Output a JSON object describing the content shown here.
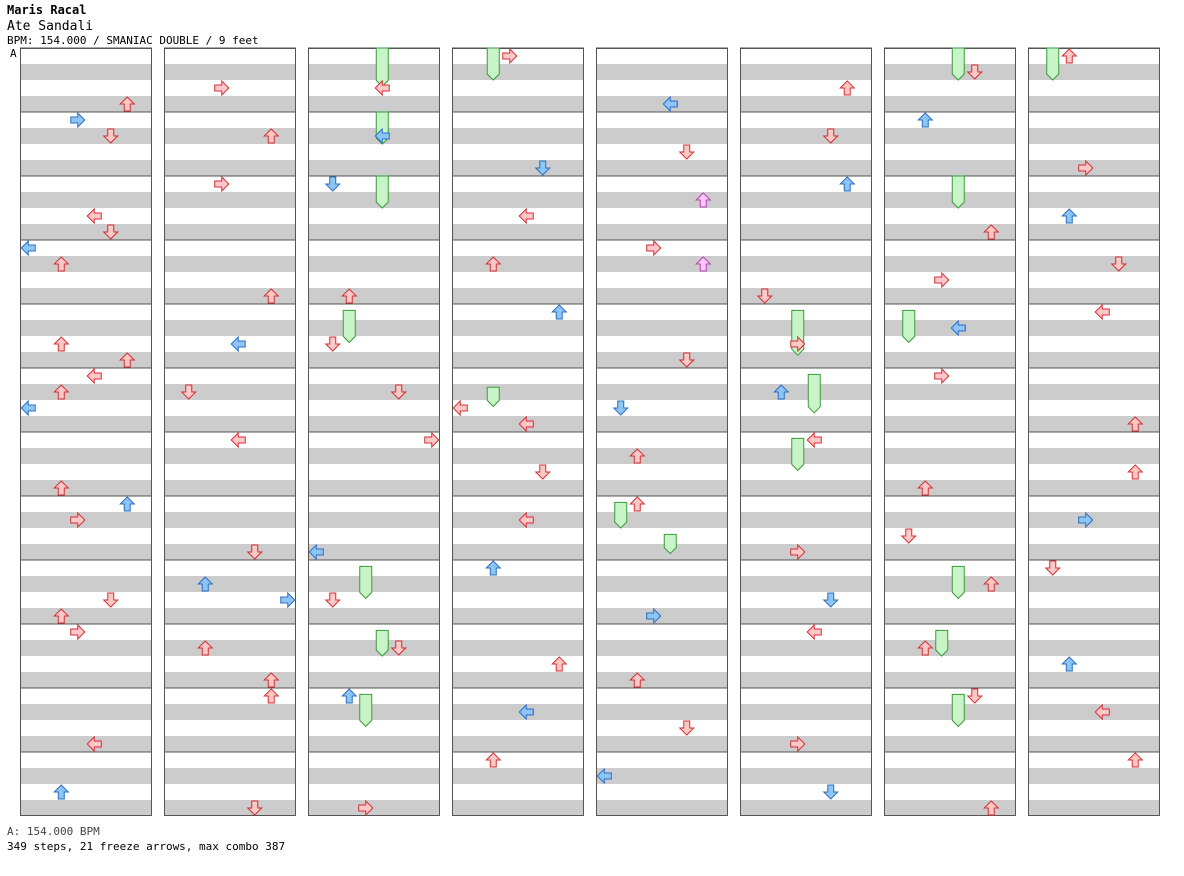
{
  "header": {
    "artist": "Maris Racal",
    "title": "Ate Sandali",
    "meta": "BPM: 154.000 / SMANIAC DOUBLE / 9 feet",
    "bpm_marker": "A"
  },
  "footer": {
    "bpm_line": "A: 154.000 BPM",
    "summary": "349 steps, 21 freeze arrows, max combo 387"
  },
  "colors": {
    "band": "#cccccc",
    "border": "#555555",
    "red_fill": "#ffc8c8",
    "red_stroke": "#d03030",
    "blue_fill": "#8ec5f5",
    "blue_stroke": "#2a6fc0",
    "pink_fill": "#ffc8ff",
    "pink_stroke": "#b040b0",
    "freeze_fill": "#c8f5c8",
    "freeze_stroke": "#3a9a3a"
  },
  "chart_data": {
    "type": "table",
    "columns": 8,
    "measures_per_column": 12,
    "lanes_per_column": 8,
    "notes": [
      [
        0,
        9,
        3,
        "r"
      ],
      [
        0,
        8,
        2,
        "r"
      ],
      [
        0,
        8,
        5,
        "r"
      ],
      [
        0,
        7,
        3,
        "r"
      ],
      [
        0,
        7,
        6,
        "b"
      ],
      [
        0,
        6,
        2,
        "r"
      ],
      [
        0,
        5,
        0,
        "b"
      ],
      [
        0,
        5,
        2,
        "r"
      ],
      [
        0,
        5,
        4,
        "r"
      ],
      [
        0,
        4,
        6,
        "r"
      ],
      [
        0,
        4,
        2,
        "r"
      ],
      [
        0,
        3,
        2,
        "r"
      ],
      [
        0,
        3,
        0,
        "b"
      ],
      [
        0,
        2,
        5,
        "r"
      ],
      [
        0,
        2,
        4,
        "r"
      ],
      [
        0,
        1,
        5,
        "r"
      ],
      [
        0,
        1,
        3,
        "b"
      ],
      [
        0,
        0,
        6,
        "r"
      ],
      [
        1,
        0,
        3,
        "r"
      ],
      [
        1,
        1,
        6,
        "r"
      ],
      [
        1,
        2,
        3,
        "r"
      ],
      [
        1,
        3,
        6,
        "r"
      ],
      [
        1,
        4,
        4,
        "b"
      ],
      [
        1,
        5,
        1,
        "r"
      ],
      [
        1,
        6,
        4,
        "r"
      ],
      [
        1,
        7,
        5,
        "r"
      ],
      [
        1,
        8,
        7,
        "b"
      ],
      [
        1,
        9,
        2,
        "r"
      ],
      [
        1,
        10,
        6,
        "r"
      ],
      [
        1,
        11,
        5,
        "r"
      ],
      [
        2,
        0,
        4,
        "r"
      ],
      [
        2,
        1,
        4,
        "b"
      ],
      [
        2,
        2,
        1,
        "b"
      ],
      [
        2,
        3,
        2,
        "r"
      ],
      [
        2,
        4,
        1,
        "r"
      ],
      [
        2,
        5,
        5,
        "r"
      ],
      [
        3,
        0,
        3,
        "r"
      ],
      [
        3,
        1,
        5,
        "b"
      ],
      [
        3,
        2,
        4,
        "r"
      ],
      [
        3,
        3,
        2,
        "r"
      ],
      [
        3,
        4,
        6,
        "b"
      ],
      [
        3,
        5,
        4,
        "r"
      ],
      [
        3,
        6,
        5,
        "r"
      ],
      [
        3,
        7,
        4,
        "r"
      ],
      [
        3,
        8,
        2,
        "b"
      ],
      [
        4,
        0,
        4,
        "b"
      ],
      [
        4,
        1,
        5,
        "r"
      ],
      [
        4,
        2,
        6,
        "p"
      ],
      [
        4,
        3,
        3,
        "r"
      ],
      [
        4,
        4,
        5,
        "r"
      ],
      [
        4,
        5,
        1,
        "b"
      ],
      [
        4,
        6,
        2,
        "r"
      ],
      [
        4,
        7,
        2,
        "r"
      ],
      [
        4,
        8,
        3,
        "b"
      ],
      [
        5,
        0,
        6,
        "r"
      ],
      [
        5,
        1,
        5,
        "r"
      ],
      [
        5,
        2,
        6,
        "b"
      ],
      [
        5,
        3,
        1,
        "r"
      ],
      [
        5,
        4,
        3,
        "r"
      ],
      [
        5,
        5,
        2,
        "b"
      ],
      [
        5,
        6,
        4,
        "r"
      ],
      [
        5,
        7,
        3,
        "r"
      ],
      [
        5,
        8,
        5,
        "b"
      ],
      [
        6,
        0,
        5,
        "r"
      ],
      [
        6,
        1,
        2,
        "b"
      ],
      [
        6,
        2,
        6,
        "r"
      ],
      [
        6,
        3,
        3,
        "r"
      ],
      [
        6,
        4,
        4,
        "b"
      ],
      [
        6,
        5,
        3,
        "r"
      ],
      [
        6,
        6,
        2,
        "r"
      ],
      [
        6,
        7,
        1,
        "r"
      ],
      [
        6,
        8,
        6,
        "r"
      ],
      [
        7,
        0,
        2,
        "r"
      ],
      [
        7,
        1,
        3,
        "r"
      ],
      [
        7,
        2,
        2,
        "b"
      ],
      [
        7,
        3,
        5,
        "r"
      ],
      [
        7,
        4,
        4,
        "r"
      ],
      [
        7,
        5,
        6,
        "r"
      ],
      [
        7,
        6,
        6,
        "r"
      ],
      [
        7,
        7,
        3,
        "b"
      ],
      [
        7,
        8,
        1,
        "r"
      ],
      [
        0,
        10,
        4,
        "r"
      ],
      [
        0,
        11,
        2,
        "b"
      ],
      [
        1,
        8,
        2,
        "b"
      ],
      [
        2,
        6,
        7,
        "r"
      ],
      [
        2,
        7,
        0,
        "b"
      ],
      [
        2,
        8,
        1,
        "r"
      ],
      [
        2,
        9,
        5,
        "r"
      ],
      [
        2,
        10,
        2,
        "b"
      ],
      [
        2,
        11,
        3,
        "r"
      ],
      [
        3,
        9,
        6,
        "r"
      ],
      [
        3,
        10,
        4,
        "b"
      ],
      [
        3,
        11,
        2,
        "r"
      ],
      [
        4,
        9,
        2,
        "r"
      ],
      [
        4,
        10,
        5,
        "r"
      ],
      [
        4,
        11,
        0,
        "b"
      ],
      [
        5,
        9,
        4,
        "r"
      ],
      [
        5,
        10,
        3,
        "r"
      ],
      [
        5,
        11,
        5,
        "b"
      ],
      [
        6,
        9,
        2,
        "r"
      ],
      [
        6,
        10,
        5,
        "r"
      ],
      [
        6,
        11,
        6,
        "r"
      ],
      [
        7,
        9,
        2,
        "b"
      ],
      [
        7,
        10,
        4,
        "r"
      ],
      [
        7,
        11,
        6,
        "r"
      ],
      [
        1,
        9,
        6,
        "r"
      ],
      [
        3,
        5,
        0,
        "r"
      ],
      [
        4,
        3,
        6,
        "p"
      ]
    ],
    "freezes": [
      [
        2,
        0,
        4,
        0.0,
        0.6
      ],
      [
        2,
        1,
        4,
        0.0,
        0.5
      ],
      [
        2,
        2,
        4,
        0.0,
        0.5
      ],
      [
        3,
        0,
        2,
        0.0,
        0.5
      ],
      [
        7,
        0,
        1,
        0.0,
        0.5
      ],
      [
        6,
        0,
        4,
        0.0,
        0.5
      ],
      [
        6,
        2,
        4,
        0.0,
        0.5
      ],
      [
        2,
        4,
        2,
        0.1,
        0.6
      ],
      [
        6,
        4,
        1,
        0.1,
        0.6
      ],
      [
        5,
        4,
        3,
        0.1,
        0.8
      ],
      [
        5,
        5,
        4,
        0.1,
        0.7
      ],
      [
        5,
        6,
        3,
        0.1,
        0.6
      ],
      [
        4,
        7,
        1,
        0.1,
        0.5
      ],
      [
        4,
        7,
        4,
        0.6,
        0.9
      ],
      [
        2,
        8,
        3,
        0.1,
        0.6
      ],
      [
        6,
        8,
        4,
        0.1,
        0.6
      ],
      [
        2,
        9,
        4,
        0.1,
        0.5
      ],
      [
        6,
        9,
        3,
        0.1,
        0.5
      ],
      [
        2,
        10,
        3,
        0.1,
        0.6
      ],
      [
        6,
        10,
        4,
        0.1,
        0.6
      ],
      [
        3,
        5,
        2,
        0.3,
        0.6
      ]
    ]
  }
}
